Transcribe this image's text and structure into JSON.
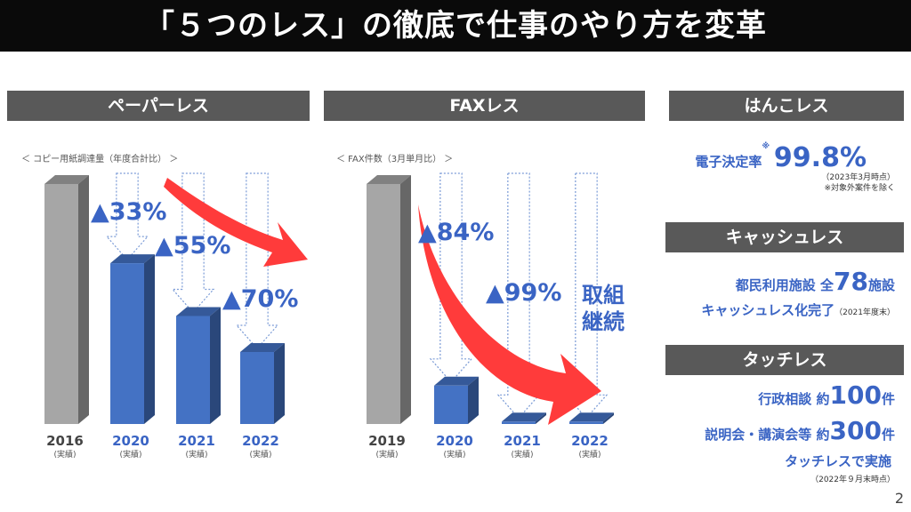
{
  "title": "「５つのレス」の徹底で仕事のやり方を変革",
  "page_number": "2",
  "colors": {
    "bar_blue": "#4472c4",
    "bar_gray": "#a6a6a6",
    "arrow_red": "#ff3b3b",
    "accent_blue": "#3a64c4",
    "header_gray": "#595959"
  },
  "paperless": {
    "header": "ペーパーレス",
    "subtitle": "＜ コピー用紙調達量（年度合計比） ＞",
    "reductions": [
      "▲33%",
      "▲55%",
      "▲70%"
    ],
    "actual_label": "(実績)"
  },
  "faxless": {
    "header": "FAXレス",
    "subtitle": "＜ FAX件数（3月単月比） ＞",
    "reductions": [
      "▲84%",
      "▲99%"
    ],
    "continuing_line1": "取組",
    "continuing_line2": "継続",
    "actual_label": "(実績)"
  },
  "hankoless": {
    "header": "はんこレス",
    "label": "電子決定率",
    "note_mark": "※",
    "value": "99.8%",
    "as_of": "（2023年3月時点）",
    "footnote": "※対象外案件を除く"
  },
  "cashless": {
    "header": "キャッシュレス",
    "line1_prefix": "都民利用施設 全",
    "line1_number": "78",
    "line1_suffix": "施設",
    "line2": "キャッシュレス化完了",
    "line2_note": "（2021年度末）"
  },
  "touchless": {
    "header": "タッチレス",
    "line1_prefix": "行政相談 約",
    "line1_number": "100",
    "line1_suffix": "件",
    "line2_prefix": "説明会・講演会等 約",
    "line2_number": "300",
    "line2_suffix": "件",
    "line3": "タッチレスで実施",
    "as_of": "（2022年９月末時点）"
  },
  "chart_data": [
    {
      "type": "bar",
      "title": "ペーパーレス",
      "subtitle": "＜ コピー用紙調達量（年度合計比） ＞",
      "categories": [
        "2016",
        "2020",
        "2021",
        "2022"
      ],
      "category_notes": [
        "(実績)",
        "(実績)",
        "(実績)",
        "(実績)"
      ],
      "values": [
        100,
        67,
        45,
        30
      ],
      "data_labels": [
        "",
        "▲33%",
        "▲55%",
        "▲70%"
      ],
      "ylim": [
        0,
        100
      ]
    },
    {
      "type": "bar",
      "title": "FAXレス",
      "subtitle": "＜ FAX件数（3月単月比） ＞",
      "categories": [
        "2019",
        "2020",
        "2021",
        "2022"
      ],
      "category_notes": [
        "(実績)",
        "(実績)",
        "(実績)",
        "(実績)"
      ],
      "values": [
        100,
        16,
        1,
        1
      ],
      "data_labels": [
        "",
        "▲84%",
        "▲99%",
        "取組継続"
      ],
      "ylim": [
        0,
        100
      ]
    }
  ]
}
